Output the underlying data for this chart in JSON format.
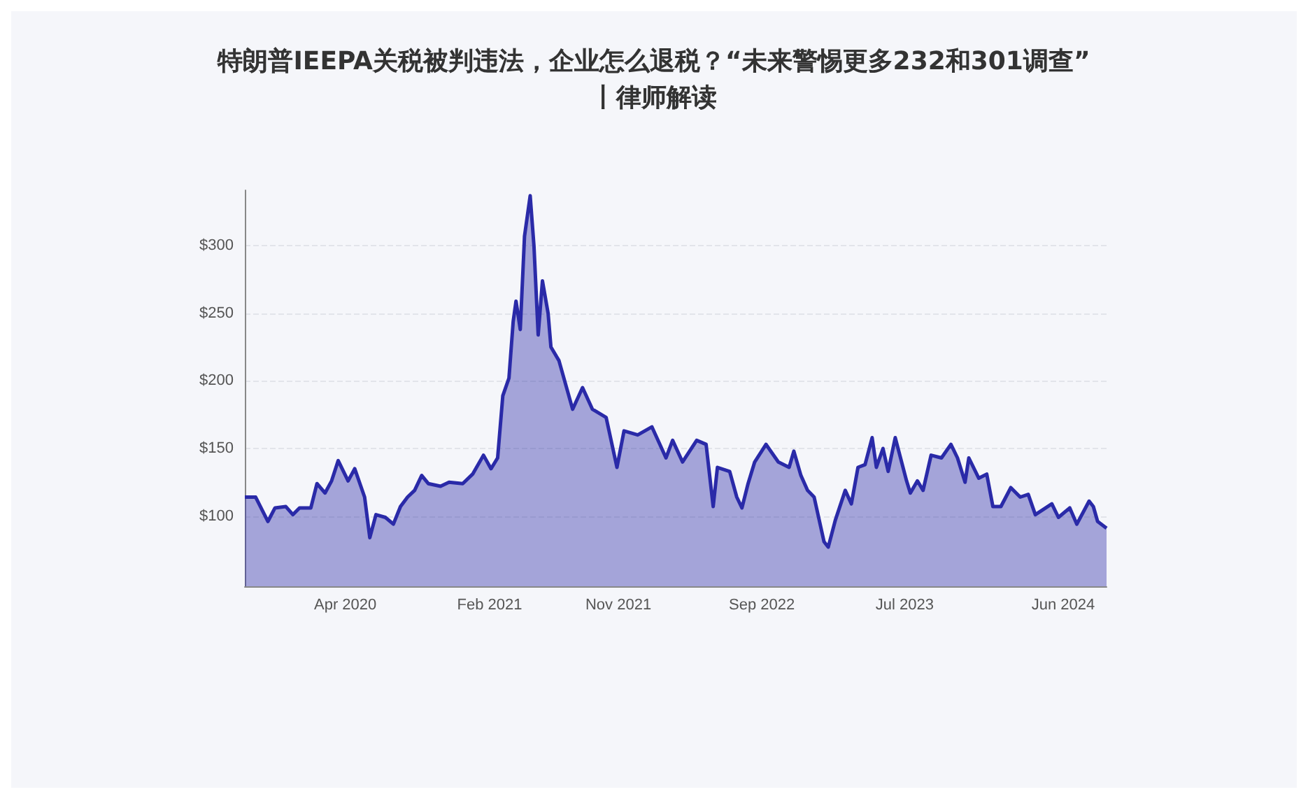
{
  "chart_data": {
    "type": "area",
    "title": "特朗普IEEPA关税被判违法，企业怎么退税？“未来警惕更多232和301调查”丨律师解读",
    "x": [
      "2019-09-01",
      "2019-09-24",
      "2019-10-20",
      "2019-11-04",
      "2019-11-27",
      "2019-12-12",
      "2019-12-26",
      "2020-01-19",
      "2020-02-01",
      "2020-02-18",
      "2020-03-03",
      "2020-03-17",
      "2020-04-07",
      "2020-04-21",
      "2020-05-12",
      "2020-05-23",
      "2020-06-05",
      "2020-06-25",
      "2020-07-12",
      "2020-07-27",
      "2020-08-11",
      "2020-08-26",
      "2020-09-10",
      "2020-09-24",
      "2020-10-20",
      "2020-11-07",
      "2020-12-06",
      "2020-12-27",
      "2021-01-19",
      "2021-02-04",
      "2021-02-18",
      "2021-03-01",
      "2021-03-14",
      "2021-03-23",
      "2021-03-29",
      "2021-04-07",
      "2021-04-16",
      "2021-04-28",
      "2021-05-06",
      "2021-05-15",
      "2021-05-24",
      "2021-06-05",
      "2021-06-11",
      "2021-06-28",
      "2021-07-27",
      "2021-08-17",
      "2021-09-07",
      "2021-10-06",
      "2021-10-29",
      "2021-11-13",
      "2021-12-12",
      "2022-01-11",
      "2022-02-10",
      "2022-02-24",
      "2022-03-17",
      "2022-04-16",
      "2022-05-06",
      "2022-05-21",
      "2022-05-30",
      "2022-06-25",
      "2022-07-10",
      "2022-07-21",
      "2022-08-03",
      "2022-08-17",
      "2022-09-10",
      "2022-10-06",
      "2022-10-29",
      "2022-11-08",
      "2022-11-23",
      "2022-12-07",
      "2022-12-21",
      "2023-01-11",
      "2023-01-20",
      "2023-02-04",
      "2023-02-25",
      "2023-03-10",
      "2023-03-24",
      "2023-04-08",
      "2023-04-23",
      "2023-05-02",
      "2023-05-16",
      "2023-05-27",
      "2023-06-11",
      "2023-07-05",
      "2023-07-13",
      "2023-07-28",
      "2023-08-09",
      "2023-08-26",
      "2023-09-17",
      "2023-10-07",
      "2023-10-21",
      "2023-11-06",
      "2023-11-14",
      "2023-12-05",
      "2023-12-22",
      "2024-01-04",
      "2024-01-21",
      "2024-02-11",
      "2024-03-02",
      "2024-03-19",
      "2024-04-03",
      "2024-05-08",
      "2024-05-22",
      "2024-06-15",
      "2024-06-30",
      "2024-07-26",
      "2024-08-04",
      "2024-08-13",
      "2024-09-01"
    ],
    "series": [
      {
        "color": "#2a2aa8",
        "values": [
          114,
          114,
          96,
          106,
          107,
          101,
          106,
          106,
          124,
          117,
          126,
          141,
          126,
          135,
          114,
          84,
          101,
          99,
          94,
          107,
          114,
          119,
          130,
          124,
          122,
          125,
          124,
          131,
          145,
          135,
          143,
          189,
          202,
          244,
          259,
          238,
          307,
          337,
          300,
          234,
          274,
          250,
          225,
          215,
          179,
          195,
          179,
          173,
          136,
          163,
          160,
          166,
          143,
          156,
          140,
          156,
          153,
          107,
          136,
          133,
          114,
          106,
          124,
          140,
          153,
          140,
          136,
          148,
          130,
          119,
          114,
          81,
          77,
          97,
          119,
          109,
          136,
          138,
          158,
          136,
          150,
          133,
          158,
          126,
          117,
          126,
          119,
          145,
          143,
          153,
          143,
          125,
          143,
          128,
          131,
          107,
          107,
          121,
          114,
          116,
          101,
          109,
          99,
          106,
          94,
          111,
          107,
          96,
          91
        ]
      }
    ],
    "xlim": [
      "2019-09-01",
      "2024-09-01"
    ],
    "xticks": [
      {
        "value": "2020-04-01",
        "label": "Apr 2020"
      },
      {
        "value": "2021-02-01",
        "label": "Feb 2021"
      },
      {
        "value": "2021-11-01",
        "label": "Nov 2021"
      },
      {
        "value": "2022-09-01",
        "label": "Sep 2022"
      },
      {
        "value": "2023-07-01",
        "label": "Jul 2023"
      },
      {
        "value": "2024-06-01",
        "label": "Jun 2024"
      }
    ],
    "ylim": [
      48,
      341
    ],
    "yticks": [
      {
        "value": 100,
        "label": "$100"
      },
      {
        "value": 150,
        "label": "$150"
      },
      {
        "value": 200,
        "label": "$200"
      },
      {
        "value": 250,
        "label": "$250"
      },
      {
        "value": 300,
        "label": "$300"
      }
    ],
    "grid": "y",
    "marker": "none",
    "line_style": "solid"
  }
}
